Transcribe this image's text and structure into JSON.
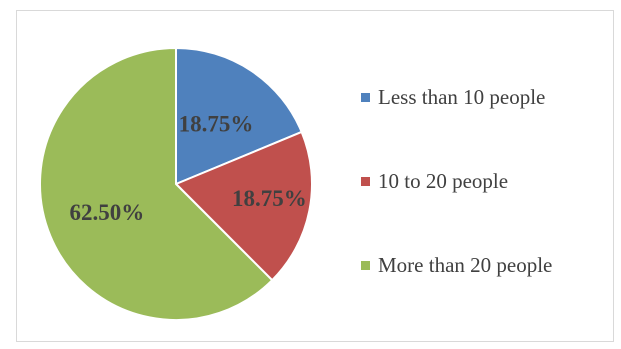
{
  "chart_data": {
    "type": "pie",
    "categories": [
      "Less than 10 people",
      "10 to 20 people",
      "More than 20 people"
    ],
    "values": [
      18.75,
      18.75,
      62.5
    ],
    "data_labels": [
      "18.75%",
      "18.75%",
      "62.50%"
    ],
    "colors": [
      "#4f81bd",
      "#c0504d",
      "#9bbb59"
    ],
    "title": "",
    "legend_position": "right"
  }
}
